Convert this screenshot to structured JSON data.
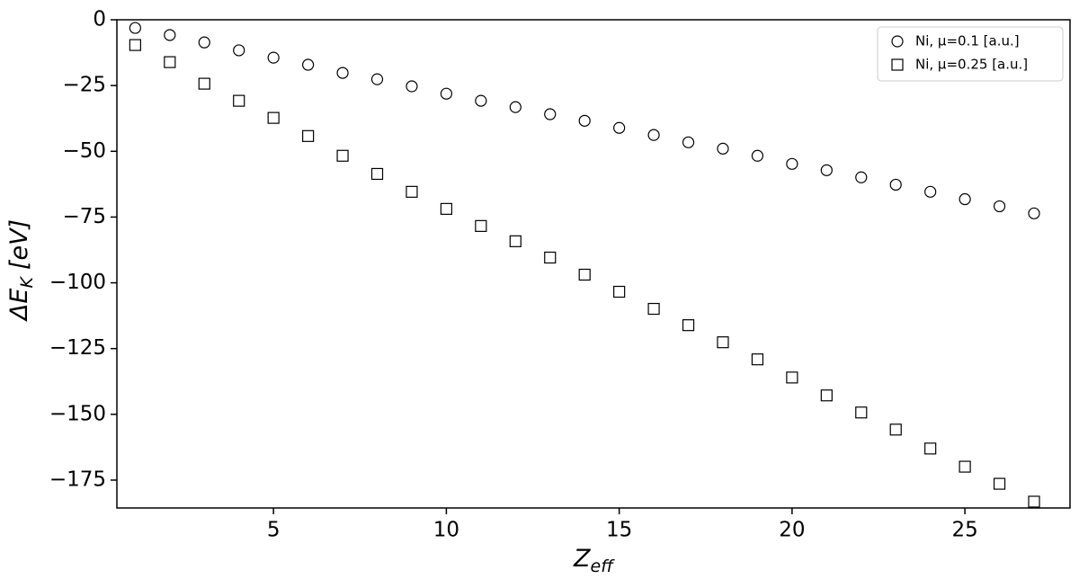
{
  "chart_data": {
    "type": "scatter",
    "x_label": {
      "main": "Z",
      "sub": "eff"
    },
    "y_label": {
      "main": "ΔE",
      "sub": "K",
      "unit": "[eV]"
    },
    "x": [
      1,
      2,
      3,
      4,
      5,
      6,
      7,
      8,
      9,
      10,
      11,
      12,
      13,
      14,
      15,
      16,
      17,
      18,
      19,
      20,
      21,
      22,
      23,
      24,
      25,
      26,
      27
    ],
    "series": [
      {
        "name": "Ni, μ=0.1 [a.u.]",
        "marker": "circle",
        "color": "#000000",
        "values": [
          -3.1,
          -5.8,
          -8.6,
          -11.6,
          -14.4,
          -17.1,
          -20.2,
          -22.6,
          -25.3,
          -28.1,
          -30.8,
          -33.2,
          -35.9,
          -38.4,
          -41.1,
          -43.8,
          -46.6,
          -49.0,
          -51.7,
          -54.8,
          -57.2,
          -59.9,
          -62.7,
          -65.4,
          -68.2,
          -70.9,
          -73.6
        ]
      },
      {
        "name": "Ni, μ=0.25 [a.u.]",
        "marker": "square",
        "color": "#000000",
        "values": [
          -9.6,
          -16.1,
          -24.3,
          -30.8,
          -37.3,
          -44.2,
          -51.7,
          -58.6,
          -65.4,
          -71.9,
          -78.4,
          -84.2,
          -90.4,
          -96.9,
          -103.4,
          -109.9,
          -116.1,
          -122.6,
          -129.1,
          -136.0,
          -142.8,
          -149.3,
          -155.8,
          -163.0,
          -169.9,
          -176.4,
          -183.2
        ]
      }
    ],
    "xlim": [
      0.47,
      28.04
    ],
    "ylim": [
      -185.6,
      0
    ],
    "xticks": [
      5,
      10,
      15,
      20,
      25
    ],
    "yticks": [
      0,
      {
        "value": -25,
        "label": "−25"
      },
      {
        "value": -50,
        "label": "−50"
      },
      {
        "value": -75,
        "label": "−75"
      },
      {
        "value": -100,
        "label": "−100"
      },
      {
        "value": -125,
        "label": "−125"
      },
      {
        "value": -150,
        "label": "−150"
      },
      {
        "value": -175,
        "label": "−175"
      }
    ],
    "grid": false,
    "legend": "upper-right"
  }
}
